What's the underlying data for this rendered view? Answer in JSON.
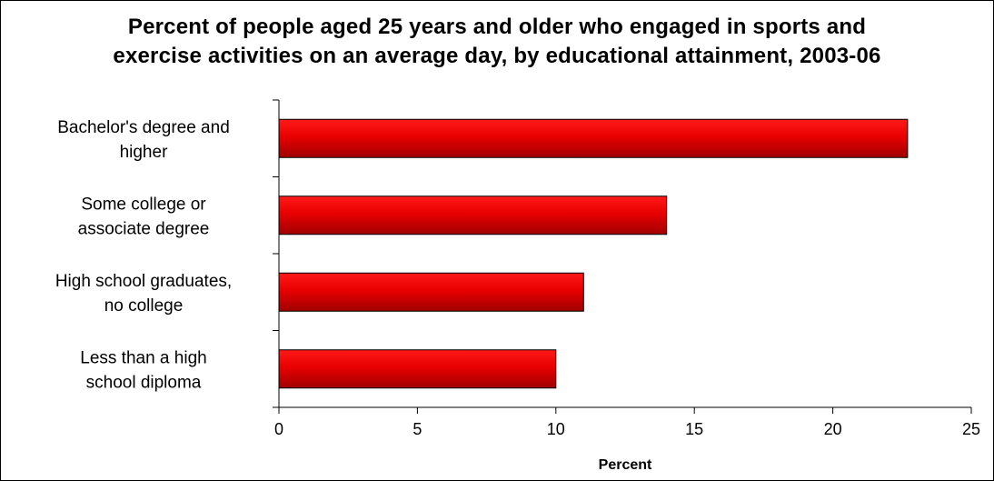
{
  "chart_data": {
    "type": "bar",
    "orientation": "horizontal",
    "title_lines": [
      "Percent of people aged 25 years and older who engaged in sports and",
      "exercise activities on an average day, by educational attainment, 2003-06"
    ],
    "categories": [
      [
        "Bachelor's degree and",
        "higher"
      ],
      [
        "Some college or",
        "associate degree"
      ],
      [
        "High school graduates,",
        "no college"
      ],
      [
        "Less than a high",
        "school diploma"
      ]
    ],
    "values": [
      22.7,
      14.0,
      11.0,
      10.0
    ],
    "xlabel": "Percent",
    "ylabel": "",
    "xlim": [
      0,
      25
    ],
    "xticks": [
      "0",
      "5",
      "10",
      "15",
      "20",
      "25"
    ],
    "bar_color": "#e00000",
    "bar_color_dark": "#a00000",
    "grid": false,
    "legend": "none"
  }
}
